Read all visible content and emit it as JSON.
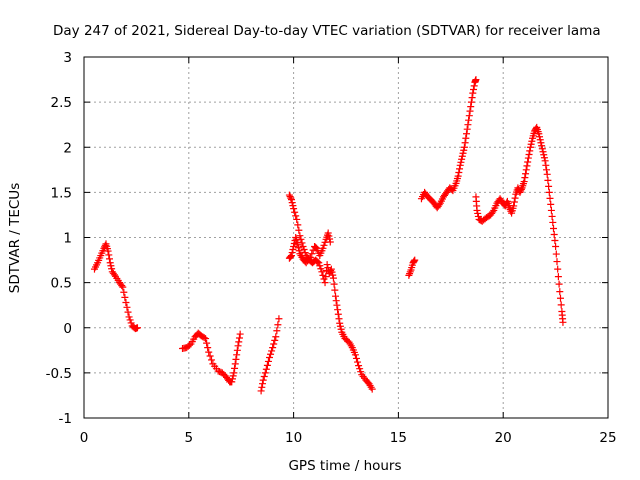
{
  "chart_data": {
    "type": "scatter",
    "title": "Day 247 of 2021, Sidereal Day-to-day VTEC variation (SDTVAR) for receiver lama",
    "xlabel": "GPS time / hours",
    "ylabel": "SDTVAR / TECUs",
    "xlim": [
      0,
      25
    ],
    "ylim": [
      -1,
      3
    ],
    "grid": true,
    "marker": "plus",
    "color": "#ff0000",
    "xticks": [
      0,
      5,
      10,
      15,
      20,
      25
    ],
    "xtick_labels": [
      "0",
      "5",
      "10",
      "15",
      "20",
      "25"
    ],
    "yticks": [
      -1,
      -0.5,
      0,
      0.5,
      1,
      1.5,
      2,
      2.5,
      3
    ],
    "ytick_labels": [
      "-1",
      "-0.5",
      "0",
      "0.5",
      "1",
      "1.5",
      "2",
      "2.5",
      "3"
    ],
    "series": [
      {
        "name": "SDTVAR",
        "segments": [
          [
            [
              0.5,
              0.65
            ],
            [
              0.65,
              0.72
            ],
            [
              0.8,
              0.8
            ],
            [
              0.95,
              0.88
            ],
            [
              1.05,
              0.93
            ],
            [
              1.15,
              0.85
            ],
            [
              1.25,
              0.72
            ],
            [
              1.35,
              0.62
            ],
            [
              1.5,
              0.57
            ],
            [
              1.7,
              0.5
            ],
            [
              1.85,
              0.45
            ],
            [
              2.0,
              0.28
            ],
            [
              2.15,
              0.12
            ],
            [
              2.3,
              0.02
            ],
            [
              2.45,
              -0.01
            ],
            [
              2.55,
              0.0
            ]
          ],
          [
            [
              4.7,
              -0.23
            ],
            [
              4.9,
              -0.22
            ],
            [
              5.1,
              -0.18
            ],
            [
              5.3,
              -0.1
            ],
            [
              5.45,
              -0.06
            ],
            [
              5.6,
              -0.09
            ],
            [
              5.8,
              -0.12
            ],
            [
              5.95,
              -0.27
            ],
            [
              6.15,
              -0.4
            ],
            [
              6.4,
              -0.48
            ],
            [
              6.6,
              -0.5
            ],
            [
              6.8,
              -0.55
            ],
            [
              6.95,
              -0.6
            ],
            [
              7.05,
              -0.6
            ],
            [
              7.15,
              -0.5
            ],
            [
              7.25,
              -0.35
            ],
            [
              7.35,
              -0.2
            ],
            [
              7.45,
              -0.07
            ]
          ],
          [
            [
              8.45,
              -0.7
            ],
            [
              8.55,
              -0.58
            ],
            [
              8.7,
              -0.46
            ],
            [
              8.85,
              -0.33
            ],
            [
              9.0,
              -0.22
            ],
            [
              9.15,
              -0.1
            ],
            [
              9.3,
              0.1
            ]
          ],
          [
            [
              9.8,
              0.77
            ],
            [
              9.9,
              0.8
            ],
            [
              10.0,
              0.9
            ],
            [
              10.1,
              1.0
            ],
            [
              10.2,
              0.92
            ],
            [
              10.3,
              0.82
            ],
            [
              10.45,
              0.76
            ],
            [
              10.6,
              0.72
            ],
            [
              10.8,
              0.78
            ],
            [
              11.0,
              0.9
            ],
            [
              11.1,
              0.88
            ],
            [
              11.25,
              0.8
            ],
            [
              11.4,
              0.88
            ],
            [
              11.55,
              0.98
            ],
            [
              11.65,
              1.05
            ],
            [
              11.75,
              0.95
            ]
          ],
          [
            [
              9.8,
              1.47
            ],
            [
              9.9,
              1.42
            ],
            [
              10.0,
              1.32
            ],
            [
              10.15,
              1.2
            ],
            [
              10.3,
              1.02
            ],
            [
              10.45,
              0.9
            ],
            [
              10.6,
              0.8
            ],
            [
              10.75,
              0.75
            ],
            [
              10.9,
              0.72
            ],
            [
              11.05,
              0.75
            ],
            [
              11.2,
              0.72
            ],
            [
              11.35,
              0.62
            ],
            [
              11.5,
              0.5
            ],
            [
              11.6,
              0.7
            ],
            [
              11.7,
              0.6
            ],
            [
              11.8,
              0.65
            ],
            [
              11.9,
              0.55
            ],
            [
              12.0,
              0.35
            ],
            [
              12.1,
              0.2
            ],
            [
              12.2,
              0.05
            ],
            [
              12.3,
              -0.05
            ],
            [
              12.45,
              -0.12
            ],
            [
              12.65,
              -0.16
            ],
            [
              12.8,
              -0.22
            ],
            [
              12.95,
              -0.3
            ],
            [
              13.1,
              -0.42
            ],
            [
              13.25,
              -0.52
            ],
            [
              13.45,
              -0.58
            ],
            [
              13.6,
              -0.62
            ],
            [
              13.75,
              -0.68
            ]
          ],
          [
            [
              15.5,
              0.58
            ],
            [
              15.6,
              0.64
            ],
            [
              15.7,
              0.72
            ],
            [
              15.78,
              0.75
            ]
          ],
          [
            [
              16.1,
              1.43
            ],
            [
              16.25,
              1.5
            ],
            [
              16.4,
              1.45
            ],
            [
              16.55,
              1.42
            ],
            [
              16.7,
              1.38
            ],
            [
              16.85,
              1.33
            ],
            [
              17.0,
              1.38
            ],
            [
              17.15,
              1.45
            ],
            [
              17.3,
              1.5
            ],
            [
              17.45,
              1.55
            ],
            [
              17.6,
              1.52
            ],
            [
              17.75,
              1.6
            ],
            [
              17.85,
              1.68
            ],
            [
              17.95,
              1.8
            ],
            [
              18.05,
              1.9
            ],
            [
              18.15,
              2.0
            ],
            [
              18.25,
              2.15
            ],
            [
              18.35,
              2.3
            ],
            [
              18.45,
              2.45
            ],
            [
              18.55,
              2.6
            ],
            [
              18.65,
              2.72
            ],
            [
              18.7,
              2.75
            ]
          ],
          [
            [
              18.7,
              1.45
            ],
            [
              18.75,
              1.3
            ],
            [
              18.85,
              1.2
            ],
            [
              19.0,
              1.18
            ],
            [
              19.2,
              1.22
            ],
            [
              19.4,
              1.25
            ],
            [
              19.55,
              1.3
            ],
            [
              19.7,
              1.38
            ],
            [
              19.85,
              1.43
            ],
            [
              20.0,
              1.38
            ],
            [
              20.1,
              1.35
            ],
            [
              20.2,
              1.4
            ],
            [
              20.3,
              1.33
            ],
            [
              20.4,
              1.27
            ],
            [
              20.5,
              1.35
            ],
            [
              20.6,
              1.48
            ],
            [
              20.7,
              1.55
            ],
            [
              20.8,
              1.5
            ],
            [
              20.9,
              1.55
            ],
            [
              21.0,
              1.62
            ],
            [
              21.1,
              1.75
            ],
            [
              21.2,
              1.88
            ],
            [
              21.3,
              2.0
            ],
            [
              21.4,
              2.1
            ],
            [
              21.5,
              2.18
            ],
            [
              21.6,
              2.22
            ],
            [
              21.7,
              2.15
            ],
            [
              21.8,
              2.05
            ],
            [
              21.9,
              1.95
            ],
            [
              22.0,
              1.85
            ],
            [
              22.1,
              1.7
            ],
            [
              22.2,
              1.5
            ],
            [
              22.3,
              1.3
            ],
            [
              22.4,
              1.1
            ],
            [
              22.5,
              0.9
            ],
            [
              22.6,
              0.65
            ],
            [
              22.7,
              0.4
            ],
            [
              22.8,
              0.18
            ],
            [
              22.85,
              0.06
            ]
          ]
        ]
      }
    ]
  }
}
